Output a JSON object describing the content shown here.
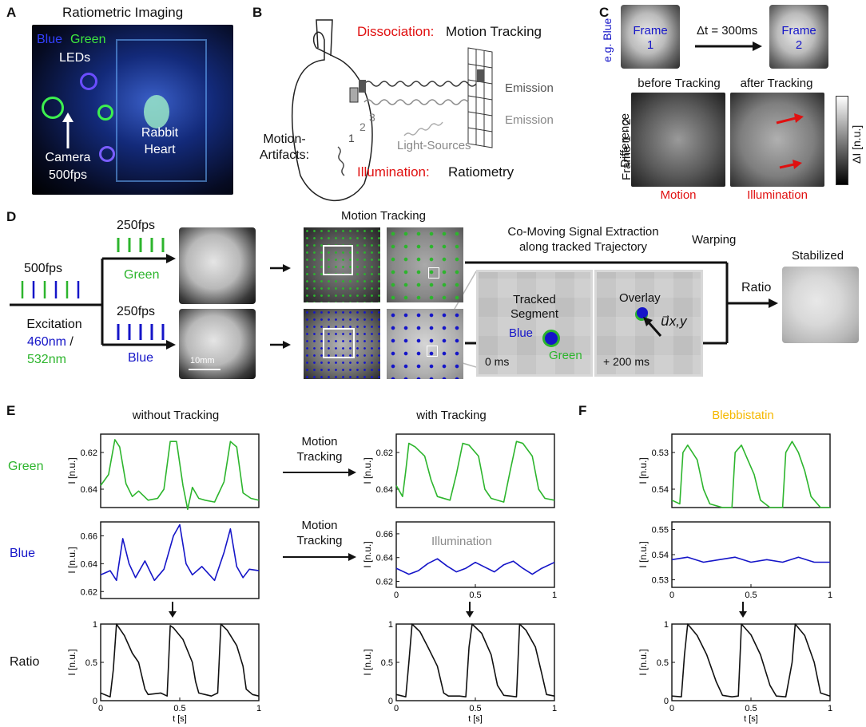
{
  "panels": {
    "A": "A",
    "B": "B",
    "C": "C",
    "D": "D",
    "E": "E",
    "F": "F"
  },
  "a": {
    "title": "Ratiometric Imaging",
    "blue": "Blue",
    "green": "Green",
    "leds": "LEDs",
    "rabbit": "Rabbit",
    "heart": "Heart",
    "camera": "Camera",
    "fps": "500fps"
  },
  "b": {
    "dissoc_red": "Dissociation:",
    "dissoc_black": "Motion Tracking",
    "emission1": "Emission",
    "emission2": "Emission",
    "light": "Light-Sources",
    "motion1": "Motion-",
    "motion2": "Artifacts:",
    "illum_red": "Illumination:",
    "illum_black": "Ratiometry",
    "n1": "1",
    "n2": "2",
    "n3": "3"
  },
  "c": {
    "eg": "e.g. Blue",
    "frame1a": "Frame",
    "frame1b": "1",
    "dt": "Δt = 300ms",
    "frame2a": "Frame",
    "frame2b": "2",
    "before": "before Tracking",
    "after": "after Tracking",
    "diff1": "Difference",
    "diff2": "Frame 1 - 2",
    "cbar": "ΔI [n.u.]",
    "motion": "Motion",
    "illumination": "Illumination"
  },
  "d": {
    "fps500": "500fps",
    "fps250a": "250fps",
    "fps250b": "250fps",
    "green": "Green",
    "blue": "Blue",
    "excitation": "Excitation",
    "nm460": "460nm",
    "slash": " /",
    "nm532": "532nm",
    "scalebar": "10mm",
    "motion_tracking": "Motion Tracking",
    "comoving1": "Co-Moving Signal Extraction",
    "comoving2": "along tracked Trajectory",
    "warping": "Warping",
    "stabilized": "Stabilized",
    "ratio": "Ratio",
    "tracked1": "Tracked",
    "tracked2": "Segment",
    "blue_lbl": "Blue",
    "green_lbl": "Green",
    "ms0": "0 ms",
    "overlay": "Overlay",
    "ms200": "+ 200 ms",
    "vec": "u⃗x,y"
  },
  "e": {
    "without": "without Tracking",
    "with": "with Tracking",
    "green_row": "Green",
    "blue_row": "Blue",
    "ratio_row": "Ratio",
    "mt1a": "Motion",
    "mt1b": "Tracking",
    "mt2a": "Motion",
    "mt2b": "Tracking",
    "illumination": "Illumination"
  },
  "f": {
    "title": "Blebbistatin"
  },
  "axes": {
    "ylabel": "I [n.u.]",
    "xlabel": "t [s]"
  },
  "colors": {
    "green": "#2db52d",
    "blue": "#1515c8",
    "red": "#e01010",
    "black": "#111111",
    "orange": "#f5b800",
    "gray": "#8a8a8a"
  },
  "chart_data": [
    {
      "type": "line",
      "id": "e_green_without",
      "ylim": [
        0.65,
        0.61
      ],
      "yticks": [
        "0.62",
        "0.64"
      ],
      "x_ticks": [],
      "series": [
        {
          "x": [
            0,
            0.05,
            0.09,
            0.12,
            0.16,
            0.2,
            0.24,
            0.3,
            0.36,
            0.4,
            0.44,
            0.48,
            0.52,
            0.55,
            0.58,
            0.62,
            0.66,
            0.72,
            0.78,
            0.82,
            0.86,
            0.9,
            0.95,
            1
          ],
          "values": [
            0.638,
            0.632,
            0.613,
            0.617,
            0.637,
            0.644,
            0.641,
            0.646,
            0.645,
            0.64,
            0.614,
            0.614,
            0.638,
            0.651,
            0.639,
            0.645,
            0.646,
            0.647,
            0.636,
            0.614,
            0.617,
            0.642,
            0.645,
            0.646
          ]
        }
      ]
    },
    {
      "type": "line",
      "id": "e_green_with",
      "ylim": [
        0.65,
        0.61
      ],
      "yticks": [
        "0.62",
        "0.64"
      ],
      "x_ticks": [],
      "series": [
        {
          "x": [
            0,
            0.04,
            0.06,
            0.08,
            0.12,
            0.18,
            0.22,
            0.26,
            0.34,
            0.38,
            0.42,
            0.46,
            0.52,
            0.56,
            0.6,
            0.68,
            0.72,
            0.76,
            0.8,
            0.86,
            0.9,
            0.94,
            1
          ],
          "values": [
            0.638,
            0.644,
            0.63,
            0.615,
            0.617,
            0.622,
            0.635,
            0.644,
            0.646,
            0.632,
            0.615,
            0.616,
            0.622,
            0.64,
            0.645,
            0.647,
            0.63,
            0.614,
            0.615,
            0.622,
            0.64,
            0.645,
            0.646
          ]
        }
      ]
    },
    {
      "type": "line",
      "id": "f_green",
      "ylim": [
        0.545,
        0.525
      ],
      "yticks": [
        "0.53",
        "0.54"
      ],
      "x_ticks": [],
      "series": [
        {
          "x": [
            0,
            0.05,
            0.07,
            0.1,
            0.16,
            0.2,
            0.24,
            0.32,
            0.38,
            0.4,
            0.44,
            0.48,
            0.52,
            0.56,
            0.62,
            0.7,
            0.72,
            0.76,
            0.8,
            0.84,
            0.88,
            0.94,
            1
          ],
          "values": [
            0.543,
            0.544,
            0.53,
            0.528,
            0.532,
            0.54,
            0.544,
            0.545,
            0.545,
            0.53,
            0.528,
            0.532,
            0.536,
            0.543,
            0.545,
            0.545,
            0.53,
            0.527,
            0.53,
            0.535,
            0.542,
            0.545,
            0.545
          ]
        }
      ]
    },
    {
      "type": "line",
      "id": "e_blue_without",
      "ylim": [
        0.615,
        0.67
      ],
      "yticks": [
        "0.62",
        "0.64",
        "0.66"
      ],
      "x_ticks": [],
      "series": [
        {
          "x": [
            0,
            0.06,
            0.1,
            0.14,
            0.18,
            0.22,
            0.28,
            0.34,
            0.4,
            0.46,
            0.5,
            0.54,
            0.58,
            0.64,
            0.72,
            0.78,
            0.82,
            0.86,
            0.9,
            0.94,
            1
          ],
          "values": [
            0.632,
            0.635,
            0.628,
            0.658,
            0.64,
            0.63,
            0.642,
            0.628,
            0.636,
            0.66,
            0.668,
            0.64,
            0.632,
            0.638,
            0.628,
            0.648,
            0.665,
            0.638,
            0.63,
            0.636,
            0.635
          ]
        }
      ]
    },
    {
      "type": "line",
      "id": "e_blue_with",
      "ylim": [
        0.615,
        0.67
      ],
      "yticks": [
        "0.62",
        "0.64",
        "0.66"
      ],
      "x_ticks": [
        "0",
        "0.5",
        "1"
      ],
      "series": [
        {
          "x": [
            0,
            0.08,
            0.14,
            0.2,
            0.26,
            0.32,
            0.38,
            0.44,
            0.5,
            0.56,
            0.62,
            0.68,
            0.74,
            0.8,
            0.86,
            0.92,
            1
          ],
          "values": [
            0.631,
            0.626,
            0.629,
            0.635,
            0.639,
            0.633,
            0.628,
            0.631,
            0.636,
            0.632,
            0.628,
            0.634,
            0.637,
            0.631,
            0.626,
            0.631,
            0.636
          ]
        }
      ]
    },
    {
      "type": "line",
      "id": "f_blue",
      "ylim": [
        0.527,
        0.553
      ],
      "yticks": [
        "0.53",
        "0.54",
        "0.55"
      ],
      "x_ticks": [
        "0",
        "0.5",
        "1"
      ],
      "series": [
        {
          "x": [
            0,
            0.1,
            0.2,
            0.3,
            0.4,
            0.5,
            0.6,
            0.7,
            0.8,
            0.9,
            1
          ],
          "values": [
            0.538,
            0.539,
            0.537,
            0.538,
            0.539,
            0.537,
            0.538,
            0.537,
            0.539,
            0.537,
            0.537
          ]
        }
      ]
    },
    {
      "type": "line",
      "id": "e_ratio_without",
      "ylim": [
        0,
        1
      ],
      "yticks": [
        "0",
        "0.5",
        "1"
      ],
      "x_ticks": [
        "0",
        "0.5",
        "1"
      ],
      "series": [
        {
          "x": [
            0,
            0.06,
            0.08,
            0.1,
            0.15,
            0.2,
            0.24,
            0.28,
            0.3,
            0.38,
            0.42,
            0.44,
            0.46,
            0.52,
            0.58,
            0.6,
            0.62,
            0.66,
            0.7,
            0.74,
            0.76,
            0.8,
            0.86,
            0.9,
            0.92,
            0.96,
            1
          ],
          "values": [
            0.1,
            0.05,
            0.4,
            1,
            0.85,
            0.62,
            0.5,
            0.15,
            0.08,
            0.1,
            0.06,
            0.98,
            0.95,
            0.8,
            0.5,
            0.25,
            0.1,
            0.08,
            0.06,
            0.1,
            1,
            0.92,
            0.72,
            0.45,
            0.15,
            0.08,
            0.06
          ]
        }
      ]
    },
    {
      "type": "line",
      "id": "e_ratio_with",
      "ylim": [
        0,
        1
      ],
      "yticks": [
        "0",
        "0.5",
        "1"
      ],
      "x_ticks": [
        "0",
        "0.5",
        "1"
      ],
      "series": [
        {
          "x": [
            0,
            0.06,
            0.08,
            0.1,
            0.15,
            0.2,
            0.26,
            0.3,
            0.33,
            0.4,
            0.44,
            0.46,
            0.48,
            0.54,
            0.6,
            0.64,
            0.68,
            0.72,
            0.76,
            0.78,
            0.82,
            0.88,
            0.92,
            0.95,
            1
          ],
          "values": [
            0.08,
            0.05,
            0.5,
            1,
            0.9,
            0.7,
            0.45,
            0.1,
            0.06,
            0.06,
            0.05,
            0.7,
            1,
            0.88,
            0.6,
            0.2,
            0.07,
            0.06,
            0.05,
            1,
            0.92,
            0.7,
            0.35,
            0.08,
            0.06
          ]
        }
      ]
    },
    {
      "type": "line",
      "id": "f_ratio",
      "ylim": [
        0,
        1
      ],
      "yticks": [
        "0",
        "0.5",
        "1"
      ],
      "x_ticks": [
        "0",
        "0.5",
        "1"
      ],
      "series": [
        {
          "x": [
            0,
            0.06,
            0.08,
            0.1,
            0.16,
            0.22,
            0.28,
            0.32,
            0.38,
            0.42,
            0.44,
            0.5,
            0.56,
            0.62,
            0.66,
            0.72,
            0.76,
            0.78,
            0.84,
            0.9,
            0.94,
            1
          ],
          "values": [
            0.06,
            0.05,
            0.6,
            1,
            0.85,
            0.6,
            0.25,
            0.07,
            0.05,
            0.06,
            1,
            0.86,
            0.6,
            0.2,
            0.06,
            0.05,
            0.5,
            1,
            0.85,
            0.5,
            0.1,
            0.06
          ]
        }
      ]
    }
  ]
}
